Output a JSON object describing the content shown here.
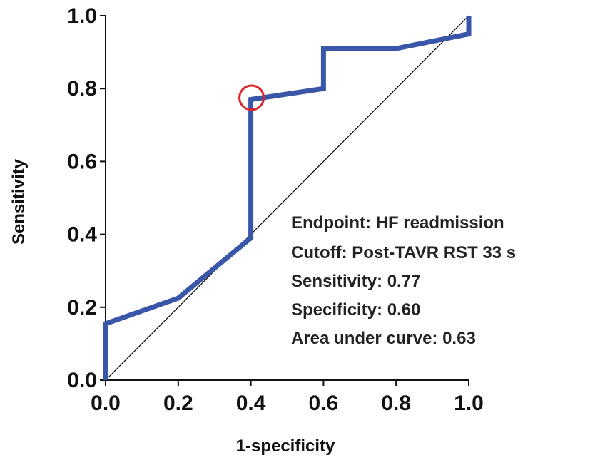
{
  "chart_data": {
    "type": "line",
    "title": "",
    "xlabel": "1-specificity",
    "ylabel": "Sensitivity",
    "xlim": [
      0,
      1
    ],
    "ylim": [
      0,
      1
    ],
    "x_ticks": [
      {
        "value": 0.0,
        "label": "0.0"
      },
      {
        "value": 0.2,
        "label": "0.2"
      },
      {
        "value": 0.4,
        "label": "0.4"
      },
      {
        "value": 0.6,
        "label": "0.6"
      },
      {
        "value": 0.8,
        "label": "0.8"
      },
      {
        "value": 1.0,
        "label": "1.0"
      }
    ],
    "y_ticks": [
      {
        "value": 0.0,
        "label": "0.0"
      },
      {
        "value": 0.2,
        "label": "0.2"
      },
      {
        "value": 0.4,
        "label": "0.4"
      },
      {
        "value": 0.6,
        "label": "0.6"
      },
      {
        "value": 0.8,
        "label": "0.8"
      },
      {
        "value": 1.0,
        "label": "1.0"
      }
    ],
    "grid": false,
    "series": [
      {
        "color": "#3a56a8",
        "points": [
          {
            "x": 0.0,
            "y": 0.0
          },
          {
            "x": 0.0,
            "y": 0.155
          },
          {
            "x": 0.2,
            "y": 0.225
          },
          {
            "x": 0.4,
            "y": 0.39
          },
          {
            "x": 0.4,
            "y": 0.77
          },
          {
            "x": 0.6,
            "y": 0.8
          },
          {
            "x": 0.6,
            "y": 0.91
          },
          {
            "x": 0.8,
            "y": 0.91
          },
          {
            "x": 1.0,
            "y": 0.95
          },
          {
            "x": 1.0,
            "y": 1.0
          }
        ]
      }
    ],
    "reference_line": {
      "color": "#000000",
      "from": {
        "x": 0.0,
        "y": 0.0
      },
      "to": {
        "x": 1.0,
        "y": 1.0
      }
    },
    "highlight": {
      "shape": "circle",
      "color": "#d9262b",
      "x": 0.4,
      "y": 0.775
    },
    "annotations": [
      "Endpoint: HF readmission",
      "Cutoff: Post-TAVR RST 33 s",
      "Sensitivity: 0.77",
      "Specificity: 0.60",
      "Area under curve: 0.63"
    ]
  }
}
